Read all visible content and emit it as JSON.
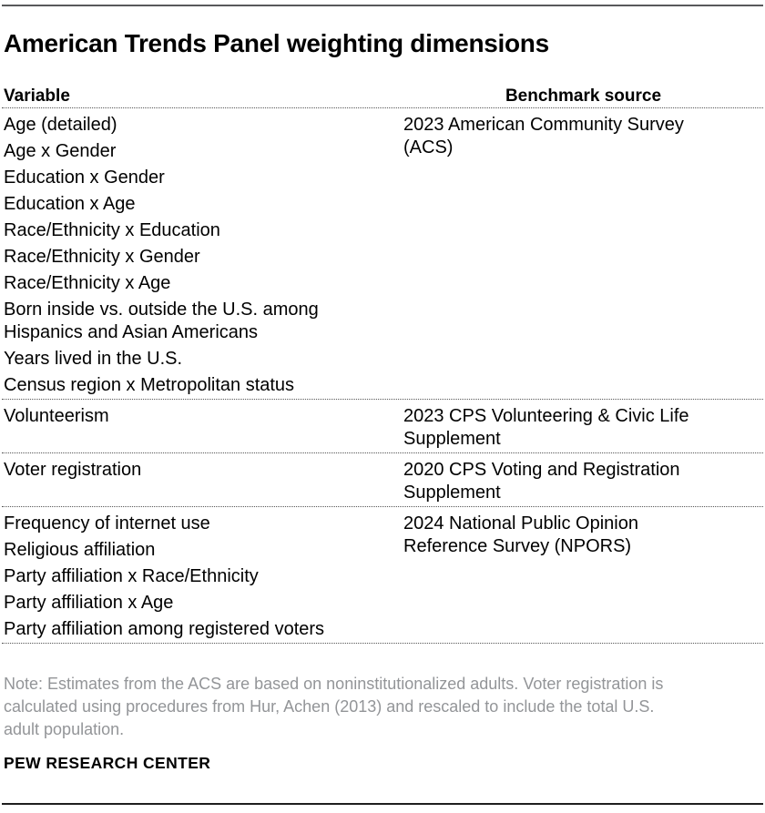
{
  "title": "American Trends Panel weighting dimensions",
  "chart_data": {
    "type": "table",
    "columns": [
      "Variable",
      "Benchmark source"
    ],
    "sections": [
      {
        "variables": [
          "Age (detailed)",
          "Age x Gender",
          "Education x Gender",
          "Education x Age",
          "Race/Ethnicity x Education",
          "Race/Ethnicity x Gender",
          "Race/Ethnicity x Age",
          "Born inside vs. outside the U.S. among Hispanics and Asian Americans",
          "Years lived in the U.S.",
          "Census region x Metropolitan status"
        ],
        "benchmark_source": "2023 American Community Survey (ACS)"
      },
      {
        "variables": [
          "Volunteerism"
        ],
        "benchmark_source": "2023 CPS Volunteering & Civic Life Supplement"
      },
      {
        "variables": [
          "Voter registration"
        ],
        "benchmark_source": "2020 CPS Voting and Registration Supplement"
      },
      {
        "variables": [
          "Frequency of internet use",
          "Religious affiliation",
          "Party affiliation x Race/Ethnicity",
          "Party affiliation x Age",
          "Party affiliation among registered voters"
        ],
        "benchmark_source": "2024 National Public Opinion Reference Survey (NPORS)"
      }
    ]
  },
  "note": "Note: Estimates from the ACS are based on noninstitutionalized adults. Voter registration is calculated using procedures from Hur, Achen (2013) and rescaled to include the total U.S. adult population.",
  "source_label": "PEW RESEARCH CENTER",
  "colors": {
    "top_rule": "#58595b",
    "bottom_rule": "#1e1e1e",
    "text": "#000000",
    "note_text": "#939598",
    "dotted_divider": "#565656"
  }
}
